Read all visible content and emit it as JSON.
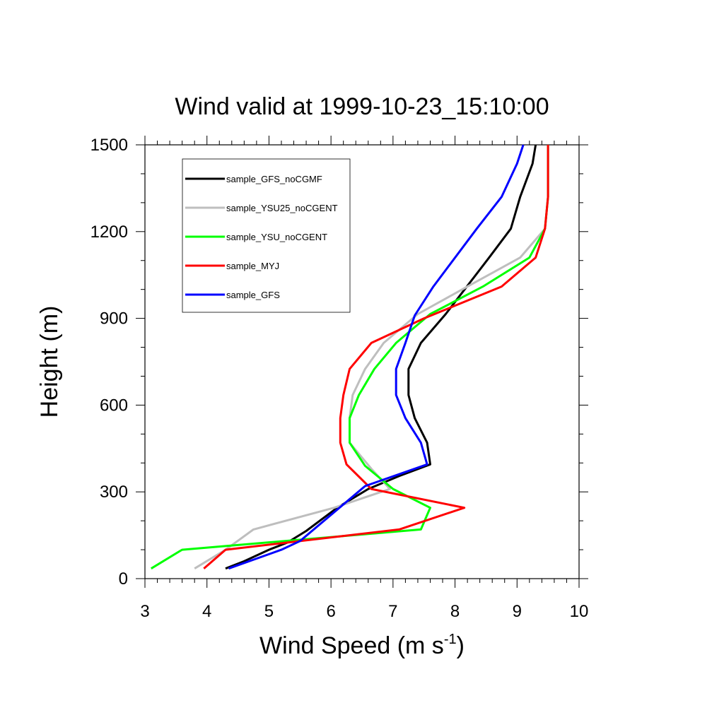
{
  "chart_data": {
    "type": "line",
    "title": "Wind valid at 1999-10-23_15:10:00",
    "xlabel": "Wind Speed (m s",
    "xlabel_sup": "-1",
    "xlabel_close": ")",
    "ylabel": "Height (m)",
    "xlim": [
      3,
      10
    ],
    "ylim": [
      0,
      1500
    ],
    "xticks": [
      3,
      4,
      5,
      6,
      7,
      8,
      9,
      10
    ],
    "yticks": [
      0,
      300,
      600,
      900,
      1200,
      1500
    ],
    "legend_position": "top-left",
    "grid": false,
    "series": [
      {
        "name": "sample_GFS_noCGMF",
        "color": "#000000",
        "points": [
          [
            4.3,
            35
          ],
          [
            4.6,
            60
          ],
          [
            5.0,
            100
          ],
          [
            5.3,
            125
          ],
          [
            5.6,
            165
          ],
          [
            6.1,
            245
          ],
          [
            6.6,
            310
          ],
          [
            7.1,
            355
          ],
          [
            7.6,
            395
          ],
          [
            7.55,
            470
          ],
          [
            7.35,
            555
          ],
          [
            7.25,
            635
          ],
          [
            7.25,
            725
          ],
          [
            7.45,
            815
          ],
          [
            7.85,
            915
          ],
          [
            8.55,
            1110
          ],
          [
            8.9,
            1210
          ],
          [
            9.05,
            1320
          ],
          [
            9.25,
            1435
          ],
          [
            9.3,
            1500
          ]
        ]
      },
      {
        "name": "sample_YSU25_noCGENT",
        "color": "#bebebe",
        "points": [
          [
            3.8,
            35
          ],
          [
            4.3,
            100
          ],
          [
            4.75,
            170
          ],
          [
            6.05,
            245
          ],
          [
            6.95,
            310
          ],
          [
            6.65,
            380
          ],
          [
            6.3,
            470
          ],
          [
            6.3,
            555
          ],
          [
            6.35,
            635
          ],
          [
            6.55,
            725
          ],
          [
            6.85,
            815
          ],
          [
            7.4,
            915
          ],
          [
            8.2,
            1010
          ],
          [
            9.05,
            1110
          ],
          [
            9.45,
            1210
          ],
          [
            9.5,
            1320
          ],
          [
            9.5,
            1435
          ],
          [
            9.5,
            1500
          ]
        ]
      },
      {
        "name": "sample_YSU_noCGENT",
        "color": "#00ff00",
        "points": [
          [
            3.1,
            35
          ],
          [
            3.6,
            100
          ],
          [
            7.45,
            170
          ],
          [
            7.6,
            245
          ],
          [
            7.0,
            310
          ],
          [
            6.55,
            390
          ],
          [
            6.3,
            470
          ],
          [
            6.3,
            555
          ],
          [
            6.45,
            635
          ],
          [
            6.7,
            725
          ],
          [
            7.05,
            815
          ],
          [
            7.6,
            915
          ],
          [
            8.45,
            1010
          ],
          [
            9.2,
            1110
          ],
          [
            9.45,
            1210
          ],
          [
            9.5,
            1320
          ],
          [
            9.5,
            1435
          ],
          [
            9.5,
            1500
          ]
        ]
      },
      {
        "name": "sample_MYJ",
        "color": "#ff0000",
        "points": [
          [
            3.95,
            35
          ],
          [
            4.3,
            100
          ],
          [
            7.1,
            170
          ],
          [
            8.15,
            245
          ],
          [
            6.65,
            310
          ],
          [
            6.25,
            395
          ],
          [
            6.15,
            470
          ],
          [
            6.15,
            555
          ],
          [
            6.2,
            635
          ],
          [
            6.3,
            725
          ],
          [
            6.65,
            815
          ],
          [
            7.5,
            900
          ],
          [
            8.75,
            1010
          ],
          [
            9.3,
            1110
          ],
          [
            9.45,
            1210
          ],
          [
            9.5,
            1320
          ],
          [
            9.5,
            1435
          ],
          [
            9.5,
            1500
          ]
        ]
      },
      {
        "name": "sample_GFS",
        "color": "#0000ff",
        "points": [
          [
            4.35,
            35
          ],
          [
            5.2,
            100
          ],
          [
            5.5,
            130
          ],
          [
            6.55,
            320
          ],
          [
            7.55,
            395
          ],
          [
            7.45,
            470
          ],
          [
            7.2,
            555
          ],
          [
            7.05,
            635
          ],
          [
            7.05,
            725
          ],
          [
            7.2,
            815
          ],
          [
            7.35,
            910
          ],
          [
            7.65,
            1010
          ],
          [
            8.35,
            1210
          ],
          [
            8.75,
            1320
          ],
          [
            9.0,
            1435
          ],
          [
            9.1,
            1500
          ]
        ]
      }
    ]
  }
}
